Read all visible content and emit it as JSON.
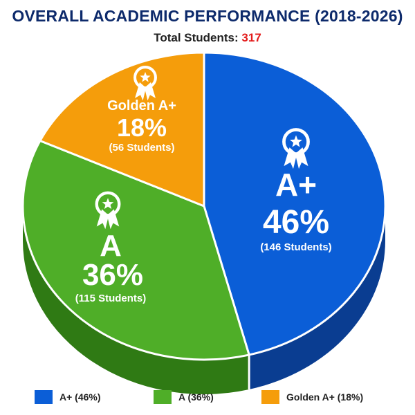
{
  "header": {
    "title": "OVERALL ACADEMIC PERFORMANCE (2018-2026)",
    "subtitle_prefix": "Total Students: ",
    "total": "317"
  },
  "chart_data": {
    "type": "pie",
    "title": "OVERALL ACADEMIC PERFORMANCE (2018-2026)",
    "subtitle": "Total Students: 317",
    "style": "3d",
    "start_angle_deg": 0,
    "direction": "clockwise",
    "slices": [
      {
        "key": "aplus",
        "label": "A+",
        "percent": 46,
        "percent_text": "46%",
        "count": 146,
        "count_text": "(146 Students)",
        "color": "#0b5ed7",
        "side_color": "#0a3d91",
        "icon": "award-ribbon-icon"
      },
      {
        "key": "a",
        "label": "A",
        "percent": 36,
        "percent_text": "36%",
        "count": 115,
        "count_text": "(115 Students)",
        "color": "#4fae28",
        "side_color": "#2f7a14",
        "icon": "award-ribbon-icon"
      },
      {
        "key": "golden",
        "label": "Golden A+",
        "percent": 18,
        "percent_text": "18%",
        "count": 56,
        "count_text": "(56 Students)",
        "color": "#f59d0b",
        "side_color": "#c07406",
        "icon": "award-ribbon-icon"
      }
    ],
    "legend": {
      "position": "bottom",
      "items": [
        {
          "label": "A+ (46%)",
          "color": "#0b5ed7"
        },
        {
          "label": "A (36%)",
          "color": "#4fae28"
        },
        {
          "label": "Golden A+ (18%)",
          "color": "#f59d0b"
        }
      ]
    }
  }
}
